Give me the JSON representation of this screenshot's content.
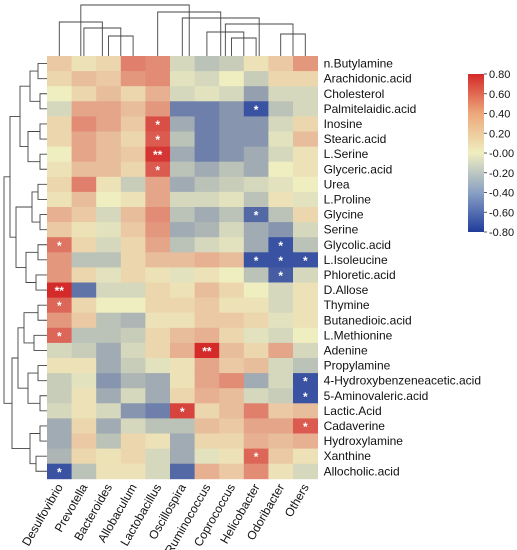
{
  "chart_data": {
    "type": "heatmap",
    "rows": [
      "n.Butylamine",
      "Arachidonic.acid",
      "Cholesterol",
      "Palmitelaidic.acid",
      "Inosine",
      "Stearic.acid",
      "L.Serine",
      "Glyceric.acid",
      "Urea",
      "L.Proline",
      "Glycine",
      "Serine",
      "Glycolic.acid",
      "L.Isoleucine",
      "Phloretic.acid",
      "D.Allose",
      "Thymine",
      "Butanedioic.acid",
      "L.Methionine",
      "Adenine",
      "Propylamine",
      "4-Hydroxybenzeneacetic.acid",
      "5-Aminovaleric.acid",
      "Lactic.Acid",
      "Cadaverine",
      "Hydroxylamine",
      "Xanthine",
      "Allocholic.acid"
    ],
    "columns": [
      "Desulfovibrio",
      "Prevotella",
      "Bacteroides",
      "Allobaculum",
      "Lactobacillus",
      "Oscillospira",
      "Ruminococcus",
      "Coprococcus",
      "Helicobacter",
      "Odoribacter",
      "Others"
    ],
    "values": [
      [
        0.15,
        0.05,
        0.1,
        0.45,
        0.4,
        -0.1,
        -0.2,
        -0.15,
        0.05,
        0.15,
        0.35
      ],
      [
        0.1,
        0.2,
        0.15,
        0.35,
        0.4,
        -0.05,
        -0.1,
        0.0,
        -0.15,
        0.1,
        0.1
      ],
      [
        0.0,
        0.1,
        0.2,
        0.1,
        0.25,
        -0.1,
        -0.05,
        -0.1,
        -0.35,
        -0.1,
        -0.1
      ],
      [
        -0.1,
        0.3,
        0.3,
        0.2,
        0.35,
        -0.5,
        -0.5,
        -0.4,
        -0.7,
        -0.2,
        -0.1
      ],
      [
        0.1,
        0.4,
        0.3,
        0.15,
        0.65,
        -0.3,
        -0.5,
        -0.4,
        -0.4,
        -0.1,
        0.1
      ],
      [
        0.1,
        0.3,
        0.2,
        0.1,
        0.6,
        -0.2,
        -0.5,
        -0.4,
        -0.4,
        -0.05,
        0.2
      ],
      [
        0.0,
        0.3,
        0.2,
        0.15,
        0.75,
        -0.3,
        -0.5,
        -0.4,
        -0.3,
        -0.1,
        0.05
      ],
      [
        0.05,
        0.2,
        0.2,
        0.1,
        0.6,
        -0.2,
        -0.3,
        -0.2,
        -0.3,
        0.0,
        0.05
      ],
      [
        0.1,
        0.45,
        0.05,
        -0.15,
        0.3,
        -0.3,
        -0.2,
        -0.15,
        -0.1,
        -0.05,
        0.0
      ],
      [
        0.05,
        0.2,
        0.0,
        0.05,
        0.3,
        -0.1,
        -0.1,
        -0.05,
        -0.2,
        0.05,
        -0.05
      ],
      [
        0.25,
        0.15,
        -0.1,
        0.2,
        0.4,
        -0.2,
        -0.3,
        -0.2,
        -0.6,
        -0.2,
        0.1
      ],
      [
        0.15,
        0.05,
        -0.05,
        0.15,
        0.35,
        -0.3,
        -0.25,
        -0.1,
        -0.3,
        -0.4,
        -0.1
      ],
      [
        0.5,
        0.1,
        -0.1,
        0.1,
        0.3,
        -0.2,
        -0.1,
        -0.05,
        -0.3,
        -0.7,
        -0.2
      ],
      [
        0.35,
        -0.2,
        -0.2,
        0.1,
        0.2,
        0.2,
        0.25,
        0.2,
        -0.7,
        -0.7,
        -0.7
      ],
      [
        0.35,
        0.1,
        -0.05,
        0.1,
        0.05,
        -0.05,
        0.05,
        0.0,
        -0.2,
        -0.65,
        -0.1
      ],
      [
        0.8,
        -0.55,
        -0.1,
        -0.1,
        0.1,
        0.05,
        0.2,
        0.1,
        0.0,
        -0.1,
        0.05
      ],
      [
        0.55,
        0.1,
        0.0,
        0.0,
        0.1,
        0.1,
        0.15,
        0.05,
        0.05,
        -0.1,
        0.05
      ],
      [
        0.35,
        0.15,
        -0.2,
        -0.25,
        0.05,
        0.05,
        0.15,
        0.15,
        0.1,
        -0.05,
        0.05
      ],
      [
        0.55,
        -0.2,
        -0.2,
        -0.15,
        0.1,
        0.2,
        0.25,
        0.1,
        -0.05,
        -0.1,
        0.0
      ],
      [
        -0.1,
        -0.15,
        -0.3,
        -0.1,
        0.1,
        0.25,
        0.8,
        0.2,
        0.1,
        0.3,
        -0.1
      ],
      [
        0.05,
        0.05,
        -0.3,
        -0.15,
        -0.05,
        0.05,
        0.3,
        0.15,
        0.2,
        -0.1,
        -0.2
      ],
      [
        -0.15,
        -0.05,
        -0.4,
        -0.25,
        -0.3,
        0.05,
        0.3,
        0.4,
        -0.3,
        -0.1,
        -0.7
      ],
      [
        -0.15,
        0.05,
        -0.3,
        -0.1,
        -0.3,
        0.1,
        0.25,
        0.2,
        -0.1,
        -0.15,
        -0.7
      ],
      [
        -0.1,
        0.05,
        -0.1,
        -0.4,
        -0.5,
        0.7,
        0.1,
        0.2,
        0.45,
        0.15,
        0.2
      ],
      [
        -0.3,
        0.1,
        -0.3,
        -0.1,
        -0.2,
        -0.2,
        0.2,
        0.15,
        0.3,
        0.3,
        0.6
      ],
      [
        -0.3,
        0.15,
        -0.2,
        0.1,
        0.05,
        -0.3,
        0.1,
        0.1,
        0.25,
        0.2,
        0.25
      ],
      [
        -0.25,
        0.1,
        0.05,
        0.1,
        -0.1,
        -0.3,
        -0.05,
        0.05,
        0.55,
        0.15,
        0.05
      ],
      [
        -0.7,
        -0.2,
        0.05,
        0.05,
        -0.1,
        -0.6,
        0.25,
        0.15,
        0.4,
        0.05,
        -0.1
      ]
    ],
    "significance": [
      [
        "",
        "",
        "",
        "",
        "",
        "",
        "",
        "",
        "",
        "",
        ""
      ],
      [
        "",
        "",
        "",
        "",
        "",
        "",
        "",
        "",
        "",
        "",
        ""
      ],
      [
        "",
        "",
        "",
        "",
        "",
        "",
        "",
        "",
        "",
        "",
        ""
      ],
      [
        "",
        "",
        "",
        "",
        "",
        "",
        "",
        "",
        "*",
        "",
        ""
      ],
      [
        "",
        "",
        "",
        "",
        "*",
        "",
        "",
        "",
        "",
        "",
        ""
      ],
      [
        "",
        "",
        "",
        "",
        "*",
        "",
        "",
        "",
        "",
        "",
        ""
      ],
      [
        "",
        "",
        "",
        "",
        "**",
        "",
        "",
        "",
        "",
        "",
        ""
      ],
      [
        "",
        "",
        "",
        "",
        "*",
        "",
        "",
        "",
        "",
        "",
        ""
      ],
      [
        "",
        "",
        "",
        "",
        "",
        "",
        "",
        "",
        "",
        "",
        ""
      ],
      [
        "",
        "",
        "",
        "",
        "",
        "",
        "",
        "",
        "",
        "",
        ""
      ],
      [
        "",
        "",
        "",
        "",
        "",
        "",
        "",
        "",
        "*",
        "",
        ""
      ],
      [
        "",
        "",
        "",
        "",
        "",
        "",
        "",
        "",
        "",
        "",
        ""
      ],
      [
        "*",
        "",
        "",
        "",
        "",
        "",
        "",
        "",
        "",
        "*",
        ""
      ],
      [
        "",
        "",
        "",
        "",
        "",
        "",
        "",
        "",
        "*",
        "*",
        "*"
      ],
      [
        "",
        "",
        "",
        "",
        "",
        "",
        "",
        "",
        "",
        "*",
        ""
      ],
      [
        "**",
        "",
        "",
        "",
        "",
        "",
        "",
        "",
        "",
        "",
        ""
      ],
      [
        "*",
        "",
        "",
        "",
        "",
        "",
        "",
        "",
        "",
        "",
        ""
      ],
      [
        "",
        "",
        "",
        "",
        "",
        "",
        "",
        "",
        "",
        "",
        ""
      ],
      [
        "*",
        "",
        "",
        "",
        "",
        "",
        "",
        "",
        "",
        "",
        ""
      ],
      [
        "",
        "",
        "",
        "",
        "",
        "",
        "**",
        "",
        "",
        "",
        ""
      ],
      [
        "",
        "",
        "",
        "",
        "",
        "",
        "",
        "",
        "",
        "",
        ""
      ],
      [
        "",
        "",
        "",
        "",
        "",
        "",
        "",
        "",
        "",
        "",
        "*"
      ],
      [
        "",
        "",
        "",
        "",
        "",
        "",
        "",
        "",
        "",
        "",
        "*"
      ],
      [
        "",
        "",
        "",
        "",
        "",
        "*",
        "",
        "",
        "",
        "",
        ""
      ],
      [
        "",
        "",
        "",
        "",
        "",
        "",
        "",
        "",
        "",
        "",
        "*"
      ],
      [
        "",
        "",
        "",
        "",
        "",
        "",
        "",
        "",
        "",
        "",
        ""
      ],
      [
        "",
        "",
        "",
        "",
        "",
        "",
        "",
        "",
        "*",
        "",
        ""
      ],
      [
        "*",
        "",
        "",
        "",
        "",
        "",
        "",
        "",
        "",
        "",
        ""
      ]
    ],
    "color_scale": {
      "min": -0.8,
      "max": 0.8,
      "low_color": "#1f3c9c",
      "mid_color": "#efeec0",
      "high_color": "#d42a2a",
      "ticks": [
        "0.80",
        "0.60",
        "0.40",
        "0.20",
        "-0.00",
        "-0.20",
        "-0.40",
        "-0.60",
        "-0.80"
      ]
    },
    "title": "",
    "xlabel": "",
    "ylabel": "",
    "legend_position": "top-right"
  }
}
